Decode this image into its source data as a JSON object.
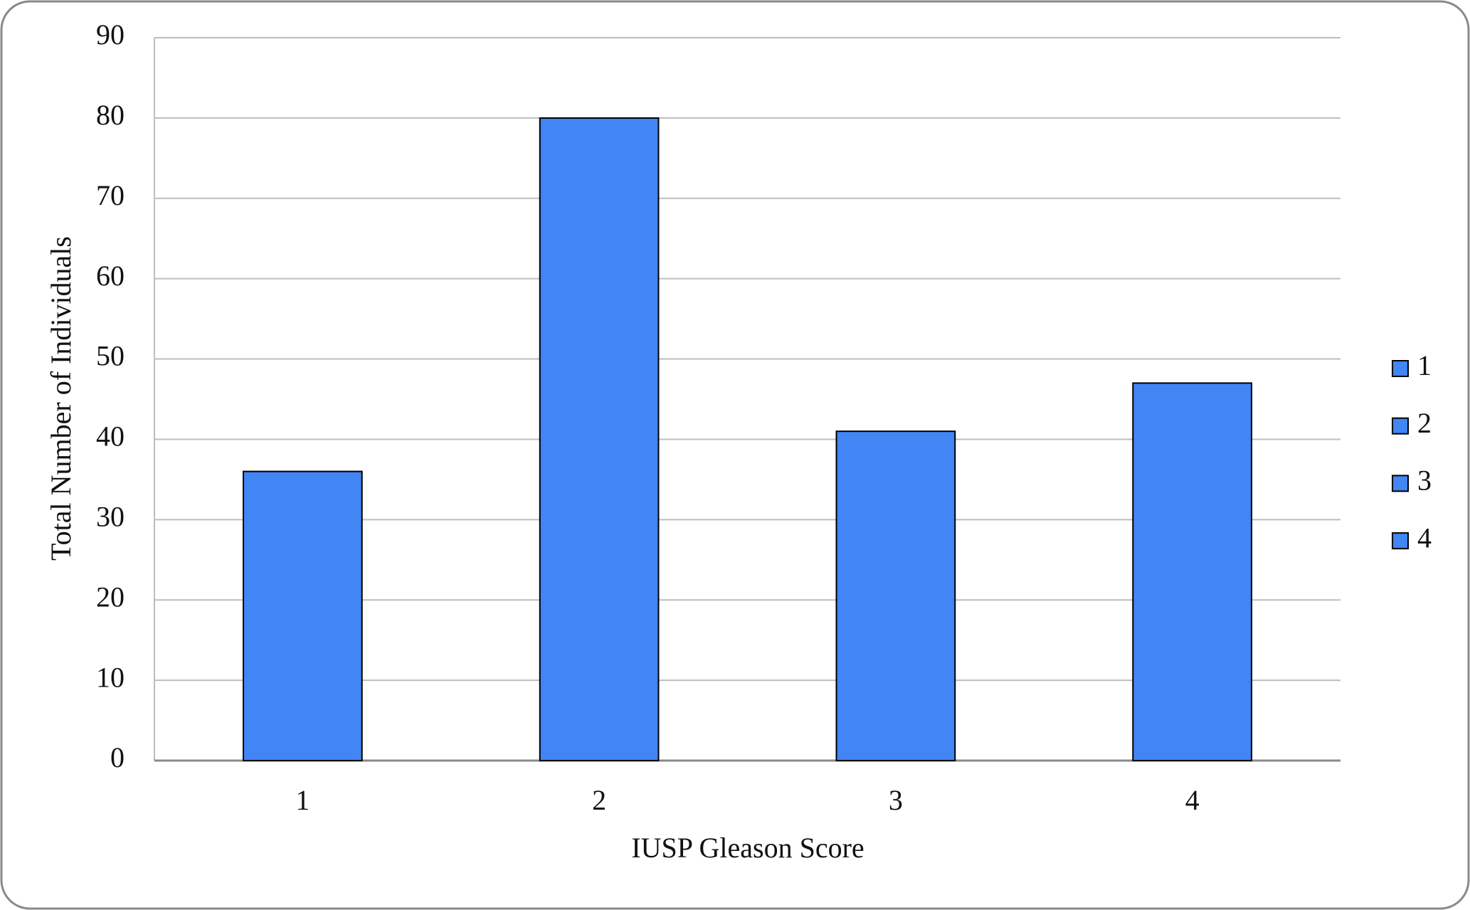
{
  "chart_data": {
    "type": "bar",
    "x_label": "IUSP Gleason Score",
    "y_label": "Total Number of Individuals",
    "categories": [
      "1",
      "2",
      "3",
      "4"
    ],
    "values": [
      36,
      80,
      41,
      47
    ],
    "color": "#4285f4",
    "ylim": [
      0,
      90
    ],
    "yticks": [
      0,
      10,
      20,
      30,
      40,
      50,
      60,
      70,
      80,
      90
    ],
    "grid": true,
    "legend": "right"
  }
}
